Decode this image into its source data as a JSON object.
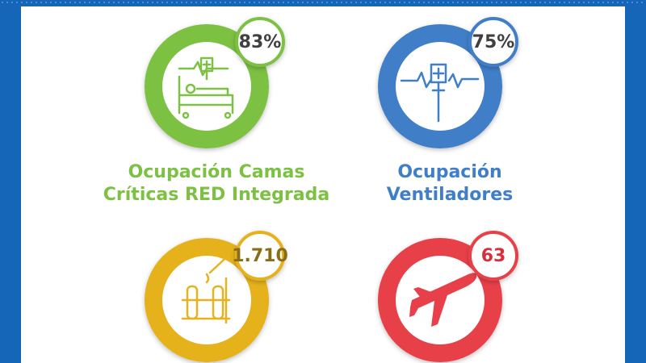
{
  "items": [
    {
      "value": "83%",
      "color": "#7cc143",
      "title": [
        "Ocupación Camas",
        "Críticas RED Integrada"
      ]
    },
    {
      "value": "75%",
      "color": "#3f7fc8",
      "title": [
        "Ocupación",
        "Ventiladores"
      ]
    },
    {
      "value": "1.710",
      "color": "#e6b21e"
    },
    {
      "value": "63",
      "color": "#e8404a"
    }
  ]
}
